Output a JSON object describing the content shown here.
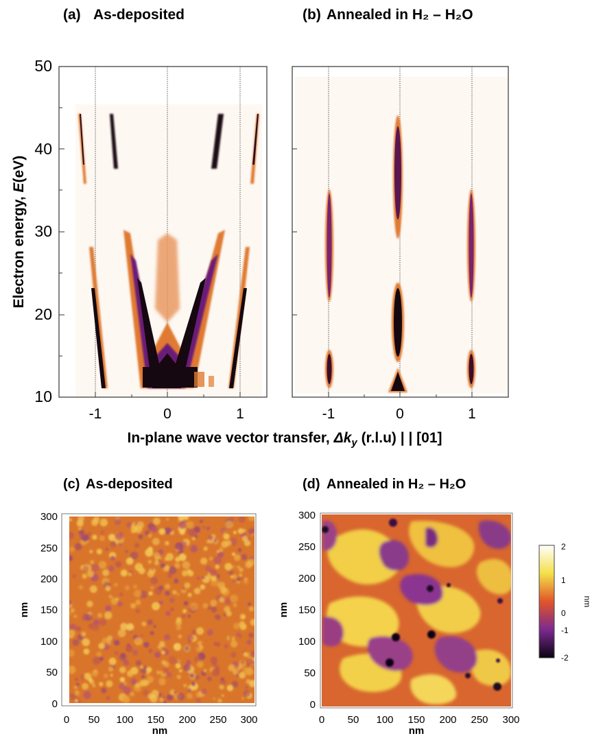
{
  "panels": {
    "a": {
      "label": "(a)",
      "title": "As-deposited"
    },
    "b": {
      "label": "(b)",
      "title": "Annealed in H₂ – H₂O"
    },
    "c": {
      "label": "(c)",
      "title": "As-deposited"
    },
    "d": {
      "label": "(d)",
      "title": "Annealed in H₂ – H₂O"
    }
  },
  "chart_data": [
    {
      "panel": "a",
      "type": "heatmap",
      "ylabel_main": "Electron energy, ",
      "ylabel_var": "E",
      "ylabel_unit": "(eV)",
      "ylim": [
        10,
        50
      ],
      "yticks": [
        "10",
        "20",
        "30",
        "40",
        "50"
      ],
      "xlim": [
        -1.5,
        1.5
      ],
      "xticks": [
        "-1",
        "0",
        "1"
      ],
      "xticks_values": [
        -1,
        0,
        1
      ],
      "guide_lines_x": [
        -1,
        0,
        1
      ],
      "description_features": [
        {
          "x": [
            -1.2,
            -1.0
          ],
          "e": [
            44,
            36
          ]
        },
        {
          "x": [
            -0.72,
            -0.72
          ],
          "e": [
            44,
            37
          ]
        },
        {
          "x": [
            0.72,
            0.72
          ],
          "e": [
            44,
            37
          ]
        },
        {
          "x": [
            1.2,
            1.0
          ],
          "e": [
            44,
            36
          ]
        }
      ]
    },
    {
      "panel": "b",
      "type": "heatmap",
      "ylim": [
        10,
        50
      ],
      "xlim": [
        -1.5,
        1.5
      ],
      "xticks": [
        "-1",
        "0",
        "1"
      ],
      "xticks_values": [
        -1,
        0,
        1
      ],
      "guide_lines_x": [
        -1,
        0,
        1
      ],
      "streaks": [
        {
          "x": -1,
          "e": [
            22,
            35
          ]
        },
        {
          "x": -1,
          "e": [
            11,
            15
          ]
        },
        {
          "x": 0,
          "e": [
            30,
            43
          ]
        },
        {
          "x": 0,
          "e": [
            14,
            24
          ]
        },
        {
          "x": 0,
          "e": [
            10.5,
            13
          ]
        },
        {
          "x": 1,
          "e": [
            22,
            35
          ]
        },
        {
          "x": 1,
          "e": [
            11,
            15
          ]
        }
      ]
    },
    {
      "panel": "c",
      "type": "heatmap",
      "xlim": [
        0,
        300
      ],
      "ylim": [
        0,
        300
      ],
      "xticks": [
        "0",
        "50",
        "100",
        "150",
        "200",
        "250",
        "300"
      ],
      "yticks": [
        "0",
        "50",
        "100",
        "150",
        "200",
        "250",
        "300"
      ],
      "xlabel": "nm",
      "ylabel": "nm"
    },
    {
      "panel": "d",
      "type": "heatmap",
      "xlim": [
        0,
        300
      ],
      "ylim": [
        0,
        300
      ],
      "xticks": [
        "0",
        "50",
        "100",
        "150",
        "200",
        "250",
        "300"
      ],
      "yticks": [
        "0",
        "50",
        "100",
        "150",
        "200",
        "250",
        "300"
      ],
      "xlabel": "nm",
      "ylabel": "nm",
      "colorbar": {
        "ticks": [
          "2",
          "1",
          "0",
          "-1",
          "-2"
        ],
        "label": "nm",
        "range": [
          -2,
          2
        ]
      }
    }
  ],
  "shared_xlabel": {
    "main": "In-plane wave vector transfer, ",
    "var": "Δk",
    "sub": "y",
    "rest": " (r.l.u) | | [01]"
  },
  "colors": {
    "dark": "#150a10",
    "purple": "#6b1f78",
    "orange": "#d8732c",
    "light_orange": "#f2b27a",
    "bg": "#fdf8f2"
  }
}
